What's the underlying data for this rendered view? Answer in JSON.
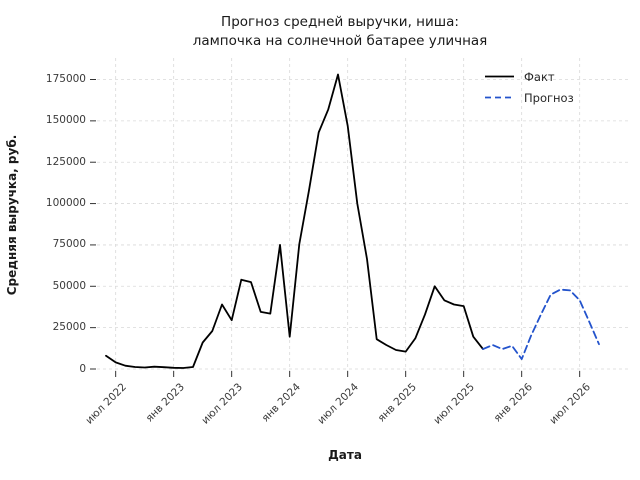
{
  "figure": {
    "title_line1": "Прогноз средней выручки, ниша:",
    "title_line2": "лампочка на солнечной батарее уличная"
  },
  "legend": {
    "items": [
      {
        "label": "Факт",
        "color": "#000000",
        "style": "solid"
      },
      {
        "label": "Прогноз",
        "color": "#2353cc",
        "style": "dashed"
      }
    ]
  },
  "chart_data": {
    "type": "line",
    "title": "Прогноз средней выручки, ниша:\nлампочка на солнечной батарее уличная",
    "xlabel": "Дата",
    "ylabel": "Средняя выручка, руб.",
    "grid": true,
    "grid_style": "dashed",
    "legend_position": "upper right",
    "ylim": [
      -2000,
      188000
    ],
    "y_ticks": [
      0,
      25000,
      50000,
      75000,
      100000,
      125000,
      150000,
      175000
    ],
    "x_tick_labels": [
      "июл 2022",
      "янв 2023",
      "июл 2023",
      "янв 2024",
      "июл 2024",
      "янв 2025",
      "июл 2025",
      "янв 2026",
      "июл 2026"
    ],
    "x_tick_month_index": [
      1,
      7,
      13,
      19,
      25,
      31,
      37,
      43,
      49
    ],
    "series": [
      {
        "name": "Факт",
        "color": "#000000",
        "style": "solid",
        "months": [
          "2022-06",
          "2022-07",
          "2022-08",
          "2022-09",
          "2022-10",
          "2022-11",
          "2022-12",
          "2023-01",
          "2023-02",
          "2023-03",
          "2023-04",
          "2023-05",
          "2023-06",
          "2023-07",
          "2023-08",
          "2023-09",
          "2023-10",
          "2023-11",
          "2023-12",
          "2024-01",
          "2024-02",
          "2024-03",
          "2024-04",
          "2024-05",
          "2024-06",
          "2024-07",
          "2024-08",
          "2024-09",
          "2024-10",
          "2024-11",
          "2024-12",
          "2025-01",
          "2025-02",
          "2025-03",
          "2025-04",
          "2025-05",
          "2025-06",
          "2025-07",
          "2025-08",
          "2025-09"
        ],
        "month_index": [
          0,
          1,
          2,
          3,
          4,
          5,
          6,
          7,
          8,
          9,
          10,
          11,
          12,
          13,
          14,
          15,
          16,
          17,
          18,
          19,
          20,
          21,
          22,
          23,
          24,
          25,
          26,
          27,
          28,
          29,
          30,
          31,
          32,
          33,
          34,
          35,
          36,
          37,
          38,
          39
        ],
        "values": [
          8000,
          4000,
          2000,
          1200,
          900,
          1400,
          1100,
          700,
          600,
          1200,
          16000,
          23000,
          39000,
          29500,
          54000,
          52500,
          34500,
          33500,
          75000,
          19500,
          75500,
          108000,
          143000,
          157000,
          178000,
          147000,
          100000,
          66500,
          18000,
          14500,
          11500,
          10500,
          18500,
          33000,
          50000,
          41500,
          39000,
          38000,
          19500,
          12000
        ]
      },
      {
        "name": "Прогноз",
        "color": "#2353cc",
        "style": "dashed",
        "months": [
          "2025-09",
          "2025-10",
          "2025-11",
          "2025-12",
          "2026-01",
          "2026-02",
          "2026-03",
          "2026-04",
          "2026-05",
          "2026-06",
          "2026-07",
          "2026-08",
          "2026-09"
        ],
        "month_index": [
          39,
          40,
          41,
          42,
          43,
          44,
          45,
          46,
          47,
          48,
          49,
          50,
          51
        ],
        "values": [
          12000,
          14500,
          12000,
          14000,
          6000,
          20500,
          33000,
          45000,
          48000,
          47500,
          41500,
          28500,
          15000
        ]
      }
    ]
  }
}
